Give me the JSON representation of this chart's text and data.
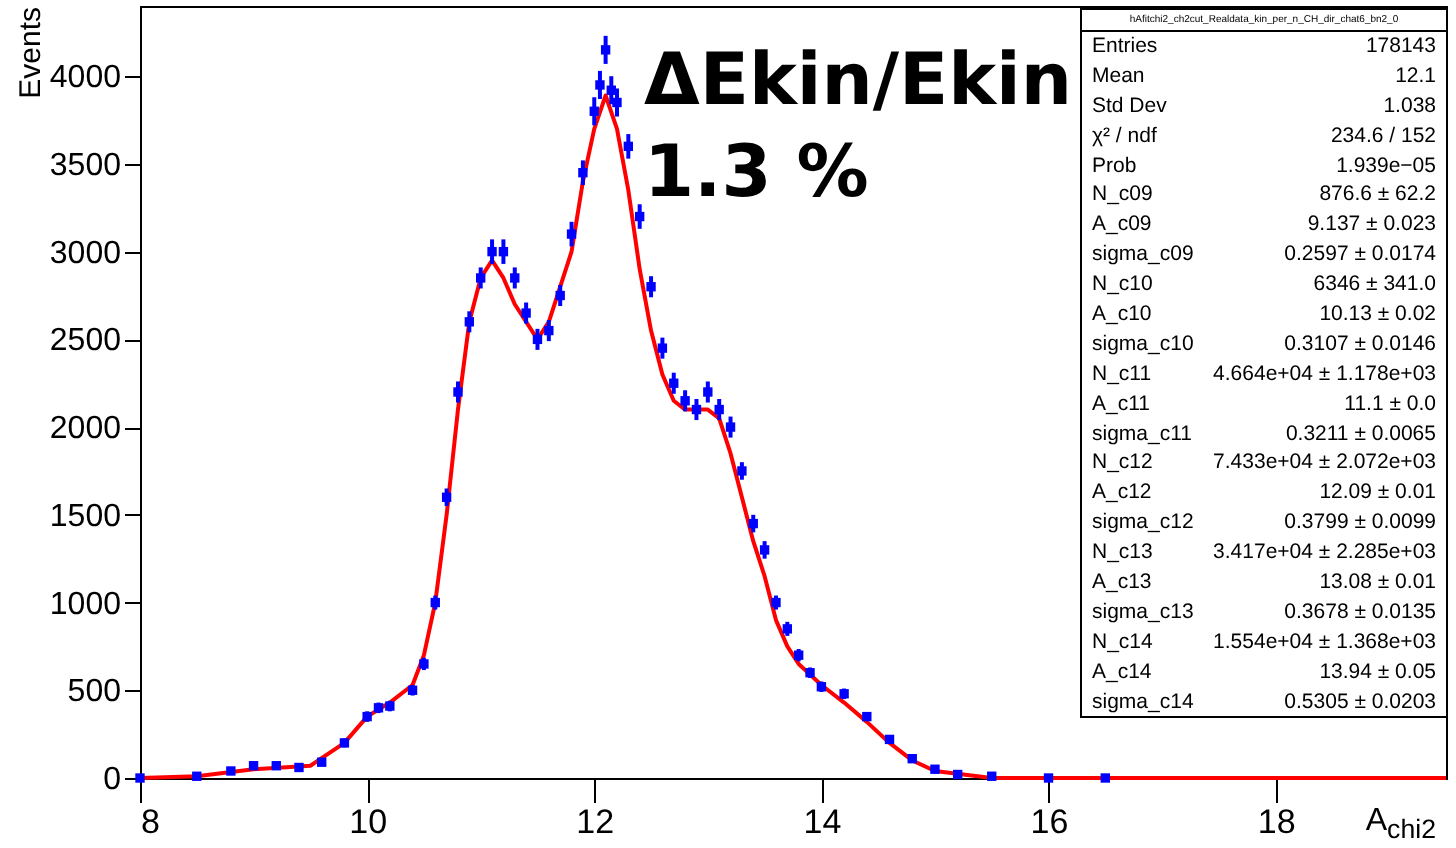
{
  "chart_data": {
    "type": "scatter",
    "xlabel": "A$_{chi2}$",
    "ylabel": "Events",
    "xlim": [
      8,
      19.5
    ],
    "xticks": [
      8,
      10,
      12,
      14,
      16,
      18
    ],
    "ylim": [
      0,
      4400
    ],
    "yticks": [
      0,
      500,
      1000,
      1500,
      2000,
      2500,
      3000,
      3500,
      4000
    ],
    "tick_labels": "xy",
    "series": [
      {
        "color": "#0000ff",
        "marker": "square",
        "x": [
          8.0,
          8.5,
          8.8,
          9.0,
          9.2,
          9.4,
          9.6,
          9.8,
          10.0,
          10.1,
          10.2,
          10.4,
          10.5,
          10.6,
          10.7,
          10.8,
          10.9,
          11.0,
          11.1,
          11.2,
          11.3,
          11.4,
          11.5,
          11.6,
          11.7,
          11.8,
          11.9,
          12.0,
          12.05,
          12.1,
          12.15,
          12.2,
          12.3,
          12.4,
          12.5,
          12.6,
          12.7,
          12.8,
          12.9,
          13.0,
          13.1,
          13.2,
          13.3,
          13.4,
          13.5,
          13.6,
          13.7,
          13.8,
          13.9,
          14.0,
          14.2,
          14.4,
          14.6,
          14.8,
          15.0,
          15.2,
          15.5,
          16.0,
          16.5
        ],
        "values": [
          0,
          10,
          40,
          70,
          70,
          60,
          90,
          200,
          350,
          400,
          410,
          500,
          650,
          1000,
          1600,
          2200,
          2600,
          2850,
          3000,
          3000,
          2850,
          2650,
          2500,
          2550,
          2750,
          3100,
          3450,
          3800,
          3950,
          4150,
          3920,
          3850,
          3600,
          3200,
          2800,
          2450,
          2250,
          2150,
          2100,
          2200,
          2100,
          2000,
          1750,
          1450,
          1300,
          1000,
          850,
          700,
          600,
          520,
          480,
          350,
          220,
          110,
          50,
          20,
          10,
          0,
          0
        ],
        "errors": [
          null,
          null,
          15,
          20,
          20,
          20,
          20,
          25,
          30,
          30,
          30,
          30,
          35,
          40,
          50,
          60,
          60,
          60,
          70,
          70,
          60,
          60,
          60,
          60,
          60,
          70,
          70,
          80,
          80,
          80,
          80,
          80,
          70,
          70,
          60,
          60,
          60,
          60,
          60,
          60,
          60,
          60,
          50,
          50,
          50,
          40,
          40,
          35,
          30,
          30,
          30,
          25,
          20,
          15,
          15,
          null,
          null,
          null,
          null
        ]
      },
      {
        "type": "line",
        "color": "#ff0000",
        "line_style": "solid",
        "marker": "none",
        "x": [
          8,
          8.5,
          9,
          9.5,
          9.8,
          10,
          10.2,
          10.4,
          10.5,
          10.6,
          10.7,
          10.8,
          10.9,
          11.0,
          11.1,
          11.2,
          11.3,
          11.5,
          11.6,
          11.8,
          11.9,
          12.0,
          12.1,
          12.2,
          12.3,
          12.4,
          12.5,
          12.6,
          12.7,
          12.8,
          13.0,
          13.1,
          13.2,
          13.3,
          13.4,
          13.5,
          13.6,
          13.7,
          13.8,
          14.0,
          14.2,
          14.4,
          14.6,
          14.8,
          15.0,
          15.5,
          16,
          19.5
        ],
        "values": [
          0,
          10,
          50,
          70,
          200,
          350,
          430,
          530,
          700,
          1000,
          1500,
          2100,
          2600,
          2850,
          2950,
          2850,
          2700,
          2500,
          2600,
          3000,
          3400,
          3700,
          3890,
          3700,
          3350,
          2900,
          2550,
          2300,
          2150,
          2100,
          2100,
          2050,
          1850,
          1600,
          1350,
          1150,
          900,
          750,
          650,
          530,
          430,
          320,
          200,
          100,
          40,
          0,
          0,
          0
        ]
      }
    ],
    "annotations": [
      "ΔEkin/Ekin",
      "1.3 %",
      "hAfitchi2_ch2cut_Realdata_kin_per_n_CH_dir_chat6_bn2_0",
      "Entries",
      "178143",
      "Mean",
      "12.1",
      "Std Dev",
      "1.038",
      "χ² / ndf",
      "234.6 / 152",
      "Prob",
      "1.939e−05",
      "N_c09",
      "876.6 ± 62.2",
      "A_c09",
      "9.137 ± 0.023",
      "sigma_c09",
      "0.2597 ± 0.0174",
      "N_c10",
      "6346 ± 341.0",
      "A_c10",
      "10.13 ± 0.02",
      "sigma_c10",
      "0.3107 ± 0.0146",
      "N_c11",
      "4.664e+04 ± 1.178e+03",
      "A_c11",
      "11.1 ± 0.0",
      "sigma_c11",
      "0.3211 ± 0.0065",
      "N_c12",
      "7.433e+04 ± 2.072e+03",
      "A_c12",
      "12.09 ± 0.01",
      "sigma_c12",
      "0.3799 ± 0.0099",
      "N_c13",
      "3.417e+04 ± 2.285e+03",
      "A_c13",
      "13.08 ± 0.01",
      "sigma_c13",
      "0.3678 ± 0.0135",
      "N_c14",
      "1.554e+04 ± 1.368e+03",
      "A_c14",
      "13.94 ± 0.05",
      "sigma_c14",
      "0.5305 ± 0.0203"
    ]
  }
}
